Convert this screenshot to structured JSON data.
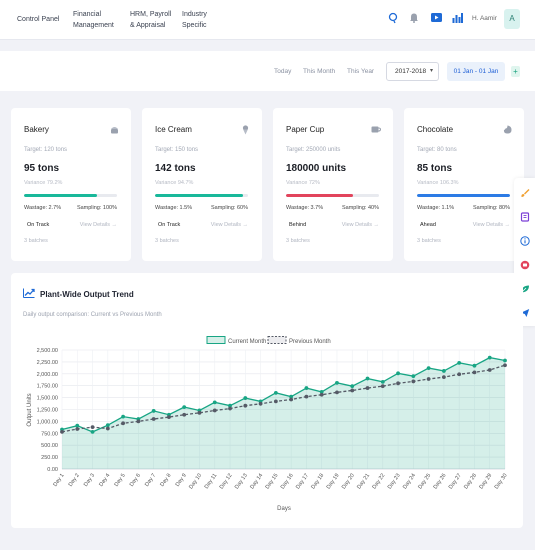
{
  "nav": {
    "items": [
      {
        "line1": "Control Panel",
        "line2": ""
      },
      {
        "line1": "Financial",
        "line2": "Management"
      },
      {
        "line1": "HRM, Payroll",
        "line2": "& Appraisal"
      },
      {
        "line1": "Industry",
        "line2": "Specific"
      }
    ],
    "icons": [
      "search-icon",
      "bell-icon",
      "play-icon",
      "chart-icon"
    ],
    "user_name": "H. Aamir",
    "avatar_letter": "A"
  },
  "filters": {
    "today": "Today",
    "this_month": "This Month",
    "this_year": "This Year",
    "year_select": "2017-2018",
    "date_range": "01 Jan - 01 Jan",
    "add_label": "+"
  },
  "cards": [
    {
      "title": "Bakery",
      "icon": "cake-icon",
      "target": "Target: 120 tons",
      "value": "95 tons",
      "variance": "Variance 79.2%",
      "progress": 0.79,
      "bar_color": "#18b89a",
      "wastage": "Wastage: 2.7%",
      "sampling": "Sampling: 100%",
      "status": "On Track",
      "details": "View Details →",
      "batches": "3 batches"
    },
    {
      "title": "Ice Cream",
      "icon": "ice-cream-icon",
      "target": "Target: 150 tons",
      "value": "142 tons",
      "variance": "Variance 94.7%",
      "progress": 0.947,
      "bar_color": "#18b89a",
      "wastage": "Wastage: 1.5%",
      "sampling": "Sampling: 60%",
      "status": "On Track",
      "details": "View Details →",
      "batches": "3 batches"
    },
    {
      "title": "Paper Cup",
      "icon": "cup-icon",
      "target": "Target: 250000 units",
      "value": "180000 units",
      "variance": "Variance 72%",
      "progress": 0.72,
      "bar_color": "#e2445c",
      "wastage": "Wastage: 3.7%",
      "sampling": "Sampling: 40%",
      "status": "Behind",
      "details": "View Details →",
      "batches": "3 batches"
    },
    {
      "title": "Chocolate",
      "icon": "chocolate-icon",
      "target": "Target: 80 tons",
      "value": "85 tons",
      "variance": "Variance 106.3%",
      "progress": 1.0,
      "bar_color": "#2c7be5",
      "wastage": "Wastage: 1.1%",
      "sampling": "Sampling: 80%",
      "status": "Ahead",
      "details": "View Details →",
      "batches": "3 batches"
    }
  ],
  "side_icons": [
    "brush-icon",
    "book-icon",
    "info-icon",
    "record-icon",
    "leaf-icon",
    "send-icon"
  ],
  "chart_panel": {
    "title": "Plant-Wide Output Trend",
    "subtitle": "Daily output comparison: Current vs Previous Month"
  },
  "chart_data": {
    "type": "line",
    "title": "",
    "xlabel": "Days",
    "ylabel": "Output Units",
    "ylim": [
      0,
      2500
    ],
    "yticks": [
      "0.00",
      "250.00",
      "500.00",
      "750.00",
      "1,000.00",
      "1,250.00",
      "1,500.00",
      "1,750.00",
      "2,000.00",
      "2,250.00",
      "2,500.00"
    ],
    "categories": [
      "Day 1",
      "Day 2",
      "Day 3",
      "Day 4",
      "Day 5",
      "Day 6",
      "Day 7",
      "Day 8",
      "Day 9",
      "Day 10",
      "Day 11",
      "Day 12",
      "Day 13",
      "Day 14",
      "Day 15",
      "Day 16",
      "Day 17",
      "Day 18",
      "Day 19",
      "Day 20",
      "Day 21",
      "Day 22",
      "Day 23",
      "Day 24",
      "Day 25",
      "Day 26",
      "Day 27",
      "Day 28",
      "Day 29",
      "Day 30"
    ],
    "legend_position": "top",
    "grid": true,
    "series": [
      {
        "name": "Current Month",
        "color": "#18a584",
        "fill": true,
        "dashed": false,
        "values": [
          830,
          910,
          780,
          920,
          1100,
          1050,
          1220,
          1140,
          1300,
          1230,
          1400,
          1330,
          1490,
          1420,
          1600,
          1520,
          1700,
          1620,
          1810,
          1740,
          1900,
          1830,
          2010,
          1950,
          2120,
          2060,
          2230,
          2170,
          2340,
          2280
        ]
      },
      {
        "name": "Previous Month",
        "color": "#555a66",
        "fill": false,
        "dashed": true,
        "values": [
          780,
          840,
          880,
          850,
          960,
          1000,
          1050,
          1090,
          1140,
          1180,
          1230,
          1270,
          1330,
          1370,
          1420,
          1460,
          1520,
          1560,
          1610,
          1650,
          1700,
          1740,
          1800,
          1840,
          1890,
          1930,
          1990,
          2030,
          2080,
          2180
        ]
      }
    ]
  }
}
